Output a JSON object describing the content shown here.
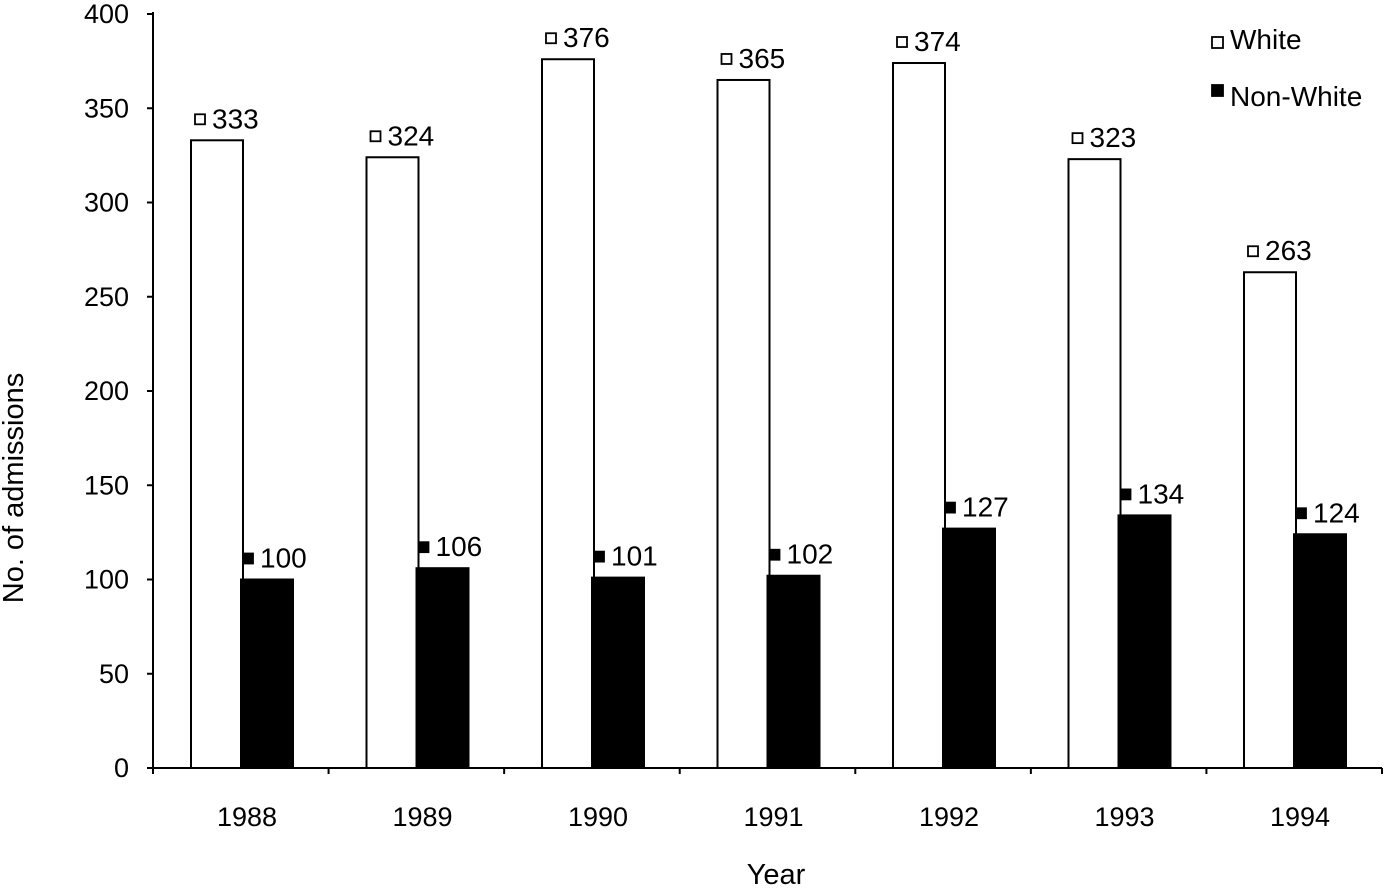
{
  "chart_data": {
    "type": "bar",
    "title": "",
    "xlabel": "Year",
    "ylabel": "No. of admissions",
    "categories": [
      "1988",
      "1989",
      "1990",
      "1991",
      "1992",
      "1993",
      "1994"
    ],
    "series": [
      {
        "name": "White",
        "values": [
          333,
          324,
          376,
          365,
          374,
          323,
          263
        ],
        "color": "#ffffff"
      },
      {
        "name": "Non-White",
        "values": [
          100,
          106,
          101,
          102,
          127,
          134,
          124
        ],
        "color": "#000000"
      }
    ],
    "ylim": [
      0,
      400
    ],
    "yticks": [
      "0",
      "50",
      "100",
      "150",
      "200",
      "250",
      "300",
      "350",
      "400"
    ],
    "grid": false,
    "legend_position": "top-right"
  }
}
